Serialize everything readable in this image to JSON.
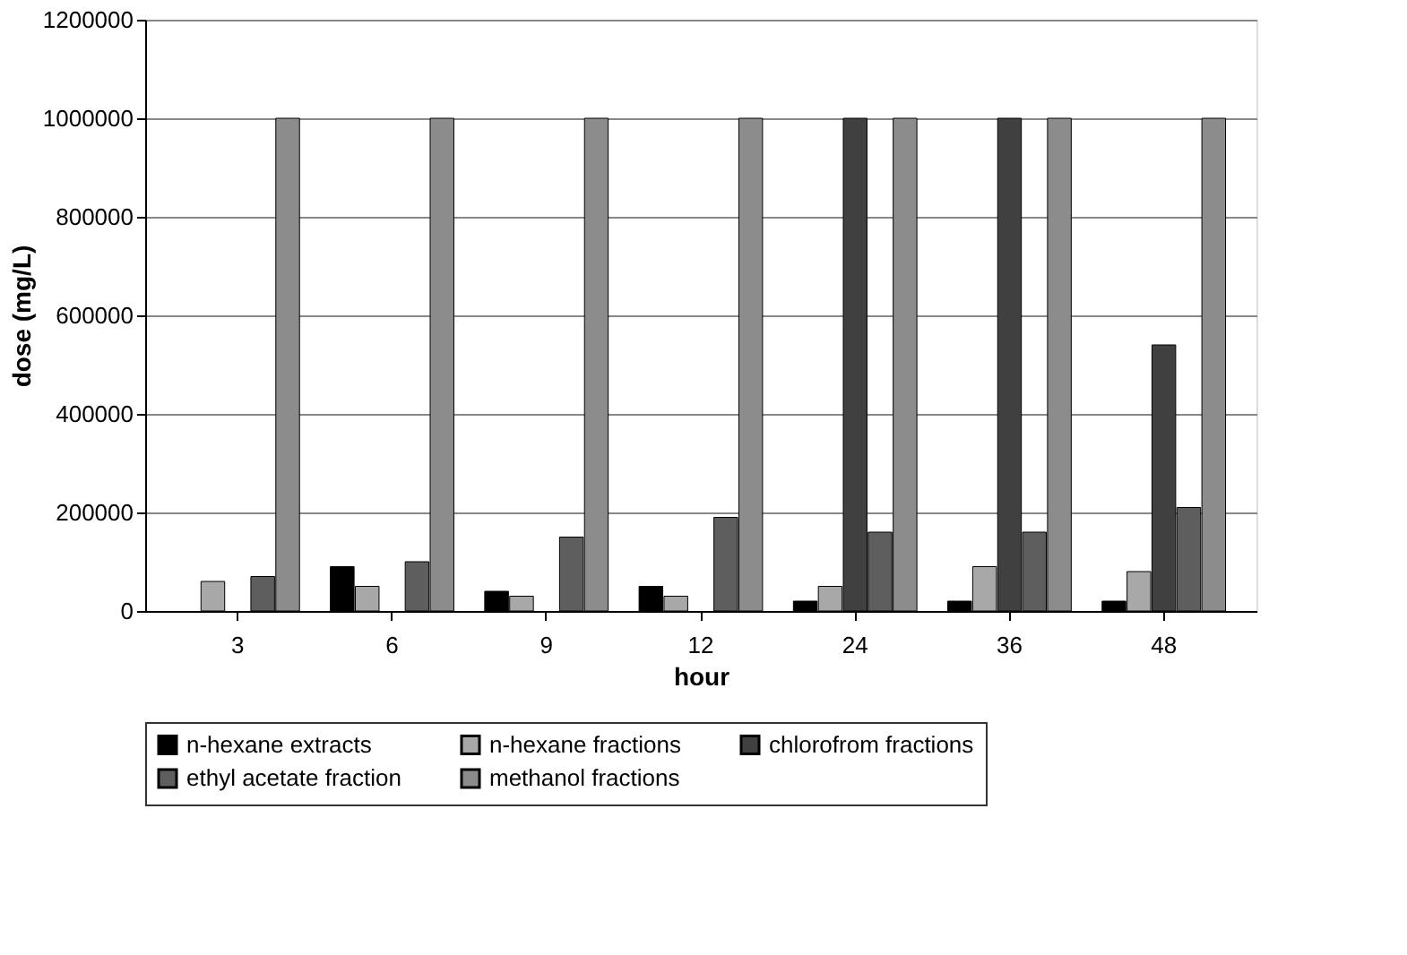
{
  "chart_data": {
    "type": "bar",
    "xlabel": "hour",
    "ylabel": "dose (mg/L)",
    "categories": [
      "3",
      "6",
      "9",
      "12",
      "24",
      "36",
      "48"
    ],
    "series": [
      {
        "name": "n-hexane extracts",
        "color": "#000000",
        "values": [
          null,
          90000,
          40000,
          50000,
          20000,
          20000,
          20000
        ]
      },
      {
        "name": "n-hexane fractions",
        "color": "#a8a8a8",
        "values": [
          60000,
          50000,
          30000,
          30000,
          50000,
          90000,
          80000
        ]
      },
      {
        "name": "chlorofrom fractions",
        "color": "#404040",
        "values": [
          null,
          null,
          null,
          null,
          1000000,
          1000000,
          540000
        ]
      },
      {
        "name": "ethyl acetate fraction",
        "color": "#5e5e5e",
        "values": [
          70000,
          100000,
          150000,
          190000,
          160000,
          160000,
          210000
        ]
      },
      {
        "name": "methanol fractions",
        "color": "#8c8c8c",
        "values": [
          1000000,
          1000000,
          1000000,
          1000000,
          1000000,
          1000000,
          1000000
        ]
      }
    ],
    "ylim": [
      0,
      1200000
    ],
    "yticks": [
      0,
      200000,
      400000,
      600000,
      800000,
      1000000,
      1200000
    ],
    "grid": "y",
    "legend": "bottom"
  }
}
